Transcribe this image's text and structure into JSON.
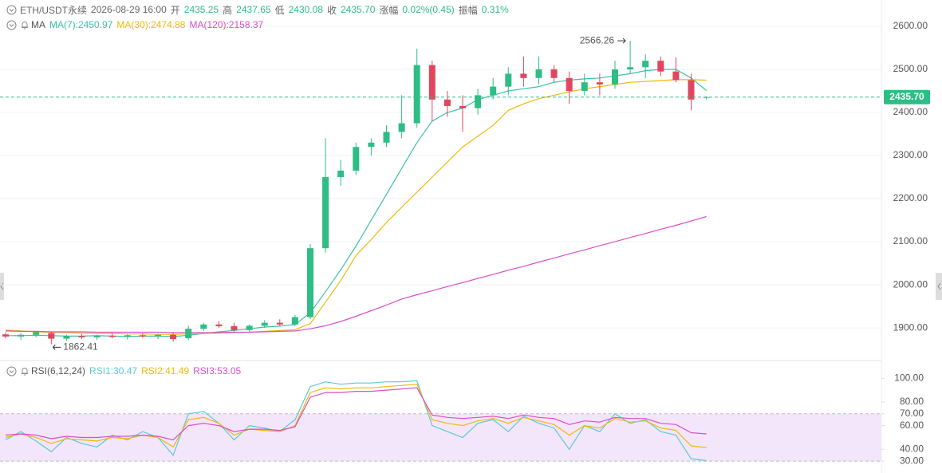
{
  "header": {
    "symbol": "ETH/USDT永续",
    "time": "2026-08-29 16:00",
    "fields": [
      {
        "label": "开",
        "value": "2435.25"
      },
      {
        "label": "高",
        "value": "2437.65"
      },
      {
        "label": "低",
        "value": "2430.08"
      },
      {
        "label": "收",
        "value": "2435.70"
      },
      {
        "label": "涨幅",
        "value": "0.02%(0.45)"
      },
      {
        "label": "振幅",
        "value": "0.31%"
      }
    ]
  },
  "chart_data": {
    "type": "candlestick",
    "up_color": "#2ebd85",
    "down_color": "#e0465e",
    "ylim": [
      1828,
      2661
    ],
    "yticks": [
      {
        "value": 1900,
        "label": "1900.00"
      },
      {
        "value": 2000,
        "label": "2000.00"
      },
      {
        "value": 2100,
        "label": "2100.00"
      },
      {
        "value": 2200,
        "label": "2200.00"
      },
      {
        "value": 2300,
        "label": "2300.00"
      },
      {
        "value": 2400,
        "label": "2400.00"
      },
      {
        "value": 2500,
        "label": "2500.00"
      },
      {
        "value": 2600,
        "label": "2600.00"
      }
    ],
    "grid": true,
    "last_price": {
      "value": 2435.7,
      "label": "2435.70"
    },
    "ohlc": [
      [
        1885,
        1890,
        1876,
        1880
      ],
      [
        1880,
        1888,
        1872,
        1884
      ],
      [
        1884,
        1893,
        1878,
        1890
      ],
      [
        1888,
        1892,
        1862.41,
        1875
      ],
      [
        1875,
        1884,
        1870,
        1881
      ],
      [
        1881,
        1886,
        1874,
        1878
      ],
      [
        1878,
        1884,
        1872,
        1882
      ],
      [
        1882,
        1887,
        1876,
        1879
      ],
      [
        1879,
        1885,
        1873,
        1883
      ],
      [
        1883,
        1888,
        1877,
        1880
      ],
      [
        1880,
        1886,
        1874,
        1884
      ],
      [
        1884,
        1889,
        1868,
        1874
      ],
      [
        1876,
        1905,
        1872,
        1898
      ],
      [
        1898,
        1912,
        1893,
        1908
      ],
      [
        1908,
        1916,
        1900,
        1904
      ],
      [
        1904,
        1912,
        1890,
        1895
      ],
      [
        1895,
        1908,
        1891,
        1905
      ],
      [
        1905,
        1918,
        1900,
        1912
      ],
      [
        1912,
        1920,
        1904,
        1908
      ],
      [
        1908,
        1930,
        1904,
        1925
      ],
      [
        1925,
        2095,
        1920,
        2085
      ],
      [
        2085,
        2340,
        2075,
        2250
      ],
      [
        2250,
        2290,
        2230,
        2265
      ],
      [
        2265,
        2330,
        2255,
        2320
      ],
      [
        2320,
        2340,
        2300,
        2330
      ],
      [
        2330,
        2370,
        2320,
        2355
      ],
      [
        2355,
        2440,
        2340,
        2375
      ],
      [
        2375,
        2548,
        2365,
        2510
      ],
      [
        2510,
        2520,
        2380,
        2430
      ],
      [
        2430,
        2450,
        2390,
        2415
      ],
      [
        2415,
        2440,
        2355,
        2410
      ],
      [
        2410,
        2455,
        2395,
        2440
      ],
      [
        2440,
        2480,
        2430,
        2460
      ],
      [
        2460,
        2505,
        2440,
        2490
      ],
      [
        2490,
        2530,
        2460,
        2480
      ],
      [
        2480,
        2530,
        2465,
        2500
      ],
      [
        2500,
        2510,
        2470,
        2480
      ],
      [
        2480,
        2495,
        2420,
        2450
      ],
      [
        2450,
        2490,
        2440,
        2470
      ],
      [
        2470,
        2490,
        2440,
        2465
      ],
      [
        2465,
        2520,
        2455,
        2500
      ],
      [
        2500,
        2566.26,
        2490,
        2505
      ],
      [
        2505,
        2535,
        2480,
        2520
      ],
      [
        2520,
        2530,
        2485,
        2495
      ],
      [
        2495,
        2528,
        2470,
        2475
      ],
      [
        2475,
        2490,
        2405,
        2430
      ],
      [
        2435.25,
        2437.65,
        2430.08,
        2435.7
      ]
    ],
    "high_note": 41,
    "low_note": 3,
    "ma_title": "MA",
    "ma": [
      {
        "name": "MA(7):2450.97",
        "color": "#3cbfae",
        "values": [
          1882,
          1882,
          1883,
          1882,
          1881,
          1881,
          1882,
          1881,
          1880,
          1881,
          1881,
          1880,
          1883,
          1887,
          1891,
          1894,
          1898,
          1902,
          1904,
          1908,
          1935,
          1984,
          2035,
          2090,
          2150,
          2210,
          2270,
          2330,
          2380,
          2400,
          2410,
          2430,
          2440,
          2450,
          2455,
          2460,
          2470,
          2475,
          2478,
          2480,
          2485,
          2490,
          2497,
          2500,
          2500,
          2480,
          2450.97
        ]
      },
      {
        "name": "MA(30):2474.88",
        "color": "#f0b90b",
        "values": [
          1895,
          1893,
          1891,
          1890,
          1889,
          1888,
          1887,
          1887,
          1886,
          1886,
          1885,
          1885,
          1886,
          1887,
          1888,
          1889,
          1890,
          1892,
          1894,
          1896,
          1910,
          1960,
          2010,
          2068,
          2105,
          2145,
          2180,
          2215,
          2250,
          2285,
          2320,
          2345,
          2370,
          2405,
          2420,
          2432,
          2440,
          2448,
          2455,
          2460,
          2465,
          2470,
          2472,
          2474,
          2476,
          2476,
          2474.88
        ]
      },
      {
        "name": "MA(120):2158.37",
        "color": "#d94fc8",
        "values": [
          1893,
          1892,
          1892,
          1891,
          1891,
          1891,
          1890,
          1890,
          1890,
          1890,
          1890,
          1889,
          1889,
          1889,
          1889,
          1890,
          1890,
          1891,
          1892,
          1893,
          1898,
          1905,
          1915,
          1927,
          1940,
          1953,
          1967,
          1977,
          1986,
          1996,
          2005,
          2015,
          2024,
          2034,
          2043,
          2053,
          2062,
          2072,
          2081,
          2091,
          2100,
          2110,
          2119,
          2129,
          2138,
          2148,
          2158.37
        ]
      }
    ],
    "rsi": {
      "title": "RSI(6,12,24)",
      "ylim": [
        20,
        113
      ],
      "yticks": [
        {
          "value": 30,
          "label": "30.00"
        },
        {
          "value": 40,
          "label": "40.00"
        },
        {
          "value": 60,
          "label": "60.00"
        },
        {
          "value": 70,
          "label": "70.00"
        },
        {
          "value": 80,
          "label": "80.00"
        },
        {
          "value": 100,
          "label": "100.00"
        }
      ],
      "band": [
        30,
        70
      ],
      "band_color": "#f3e6fb",
      "series": [
        {
          "name": "RSI1:30.47",
          "color": "#5cc9d6",
          "values": [
            48,
            55,
            47,
            38,
            50,
            45,
            42,
            52,
            48,
            55,
            50,
            35,
            70,
            72,
            62,
            48,
            60,
            58,
            55,
            65,
            93,
            97,
            95,
            96,
            96,
            97,
            97,
            98,
            60,
            55,
            50,
            62,
            65,
            55,
            68,
            62,
            58,
            40,
            60,
            55,
            70,
            62,
            65,
            55,
            52,
            32,
            30.47
          ]
        },
        {
          "name": "RSI2:41.49",
          "color": "#f0b90b",
          "values": [
            50,
            53,
            50,
            45,
            49,
            48,
            47,
            50,
            49,
            52,
            50,
            42,
            65,
            67,
            62,
            52,
            57,
            56,
            55,
            60,
            88,
            92,
            91,
            92,
            92,
            93,
            94,
            95,
            65,
            62,
            60,
            64,
            66,
            62,
            67,
            64,
            61,
            52,
            60,
            58,
            66,
            63,
            64,
            58,
            56,
            43,
            41.49
          ]
        },
        {
          "name": "RSI3:53.05",
          "color": "#d94fc8",
          "values": [
            52,
            53,
            52,
            49,
            51,
            50,
            50,
            51,
            51,
            52,
            51,
            48,
            60,
            62,
            60,
            55,
            57,
            57,
            56,
            59,
            84,
            88,
            88,
            89,
            89,
            90,
            91,
            92,
            69,
            67,
            66,
            67,
            68,
            66,
            69,
            67,
            66,
            61,
            64,
            63,
            67,
            66,
            66,
            62,
            61,
            54,
            53.05
          ]
        }
      ]
    }
  }
}
